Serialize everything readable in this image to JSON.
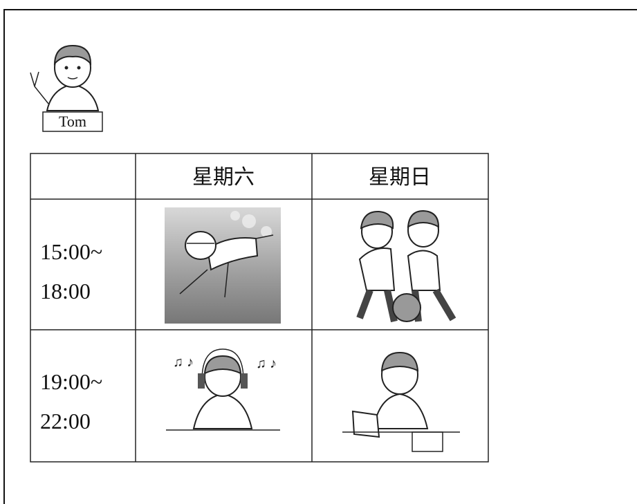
{
  "avatar": {
    "name": "Tom"
  },
  "table": {
    "header": [
      "星期六",
      "星期日"
    ],
    "rows": [
      {
        "time": [
          "15:00~",
          "18:00"
        ]
      },
      {
        "time": [
          "19:00~",
          "22:00"
        ]
      }
    ]
  }
}
